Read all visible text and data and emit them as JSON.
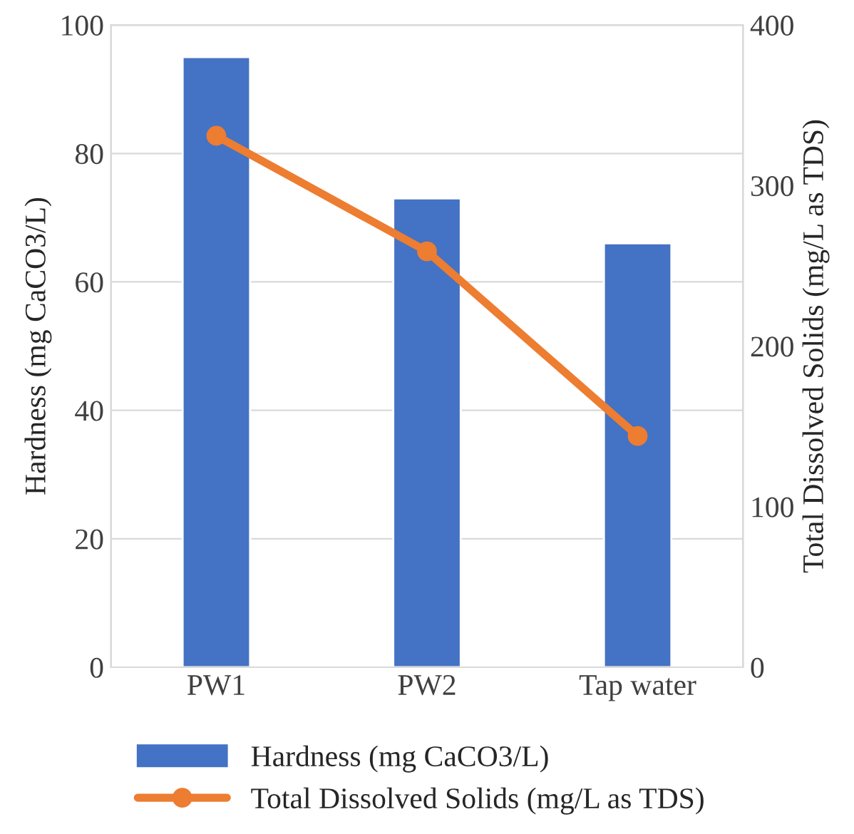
{
  "chart_data": {
    "type": "bar",
    "categories": [
      "PW1",
      "PW2",
      "Tap water"
    ],
    "ylabel": "Hardness (mg CaCO3/L)",
    "y2label": "Total Dissolved Solids (mg/L as TDS)",
    "series": [
      {
        "name": "Hardness (mg CaCO3/L)",
        "color": "#4472c4",
        "values": [
          95,
          73,
          66
        ]
      },
      {
        "name": "Total Dissolved Solids (mg/L as TDS)",
        "type": "line",
        "axis": "y2",
        "color": "#ed7d31",
        "marker": "circle",
        "values": [
          331,
          259,
          144
        ]
      }
    ],
    "ylim": [
      0,
      100
    ],
    "yticks": [
      0,
      20,
      40,
      60,
      80,
      100
    ],
    "y2lim": [
      0,
      400
    ],
    "y2ticks": [
      0,
      100,
      200,
      300,
      400
    ],
    "grid": "y",
    "legend": "bottom"
  }
}
